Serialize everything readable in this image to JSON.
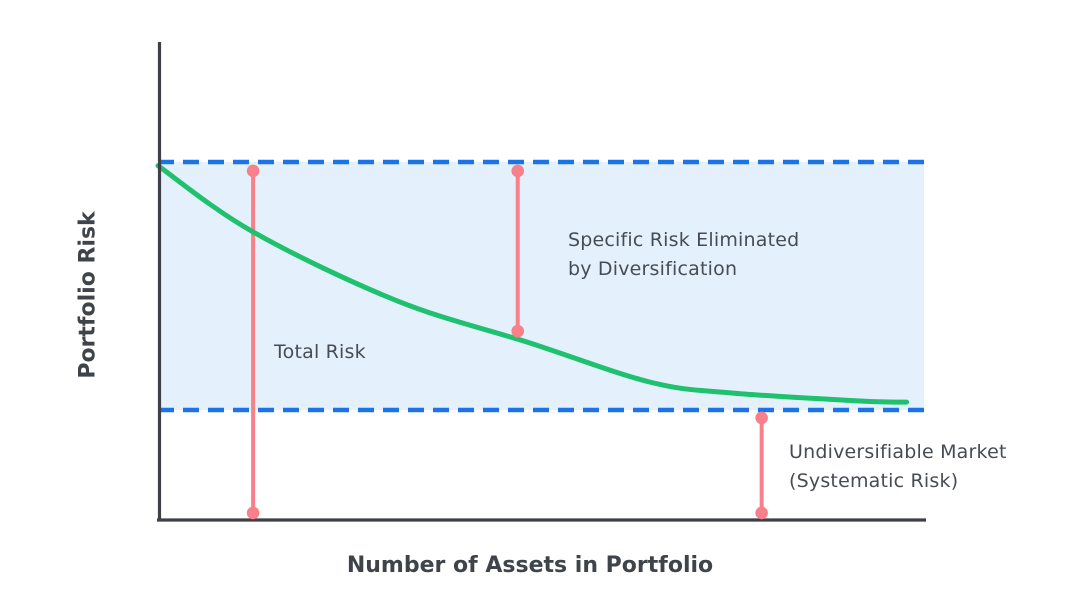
{
  "colors": {
    "background": "#ffffff",
    "axis": "#3d4147",
    "text": "#474c54",
    "dashed_line": "#1a73e8",
    "band_fill": "#e4f1fc",
    "curve": "#20c16e",
    "marker": "#f7808a"
  },
  "chart_data": {
    "type": "line",
    "title": "",
    "xlabel": "Number of Assets in Portfolio",
    "ylabel": "Portfolio Risk",
    "x_ticks": [],
    "y_ticks": [],
    "grid": false,
    "legend": false,
    "ylim_meaning": {
      "y0": "undiversifiable systematic risk floor",
      "y1": "maximum total risk"
    },
    "curve": {
      "name": "Total Risk",
      "shape": "exponential-decay",
      "points": [
        [
          0.0,
          0.985
        ],
        [
          0.124,
          0.718
        ],
        [
          0.312,
          0.44
        ],
        [
          0.485,
          0.27
        ],
        [
          0.641,
          0.113
        ],
        [
          0.746,
          0.069
        ],
        [
          0.919,
          0.036
        ],
        [
          0.976,
          0.032
        ]
      ]
    },
    "reference_lines": [
      {
        "name": "max-total-risk",
        "orientation": "horizontal",
        "y": 1.0,
        "style": "dashed"
      },
      {
        "name": "systematic-risk-floor",
        "orientation": "horizontal",
        "y": 0.0,
        "style": "dashed"
      }
    ],
    "band": {
      "name": "diversifiable-risk-band",
      "from_y": 0.0,
      "to_y": 1.0,
      "meaning": "Specific risk eliminated by diversification"
    },
    "markers": [
      {
        "name": "total-risk-span",
        "x": 0.124,
        "y1": 0.964,
        "y2": -0.415
      },
      {
        "name": "specific-risk-span",
        "x": 0.469,
        "y1": 0.964,
        "y2": 0.318
      },
      {
        "name": "systematic-risk-span",
        "x": 0.787,
        "y1": -0.032,
        "y2": -0.415
      }
    ],
    "annotations": [
      {
        "id": "specific-risk",
        "text": "Specific Risk Eliminated\nby Diversification",
        "x": 0.5345,
        "y": 0.742
      },
      {
        "id": "total-risk",
        "text": "Total Risk",
        "x": 0.1513,
        "y": 0.29
      },
      {
        "id": "systematic-risk",
        "text": "Undiversifiable Market\n(Systematic Risk)",
        "x": 0.8227,
        "y": -0.113
      }
    ]
  }
}
